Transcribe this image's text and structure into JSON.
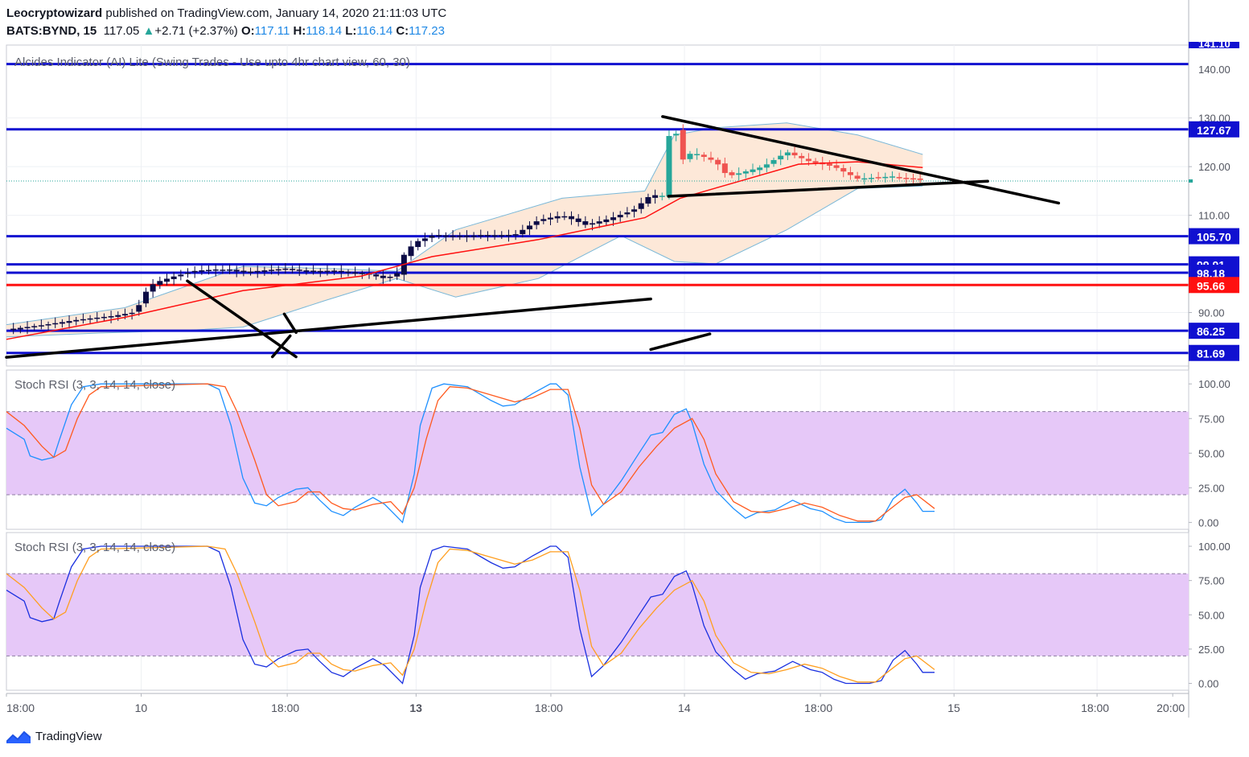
{
  "header": {
    "author": "Leocryptowizard",
    "published_text": "published on TradingView.com, January 14, 2020 21:11:03 UTC",
    "symbol": "BATS:BYND, 15",
    "last": "117.05",
    "change_arrow": "▲",
    "change": "+2.71 (+2.37%)",
    "o_label": "O:",
    "o_value": "117.11",
    "h_label": "H:",
    "h_value": "118.14",
    "l_label": "L:",
    "l_value": "116.14",
    "c_label": "C:",
    "c_value": "117.23"
  },
  "footer": {
    "brand": "TradingView"
  },
  "colors": {
    "up": "#26a69a",
    "down": "#ef5350",
    "blue_line": "#1010d0",
    "red_line": "#ff1010",
    "band_fill": "#fde8d8",
    "band_line": "#7ab8d8",
    "rsi_fill": "#e6c8f8",
    "k_line": "#1e90ff",
    "d_line_1": "#ff5a1f",
    "d_line_2": "#ff9e1f",
    "navy": "#0b0b45"
  },
  "chart_data": [
    {
      "type": "candlestick",
      "title": "Alcides Indicator (AI) Lite (Swing Trades - Use upto 4hr chart view, 60, 30)",
      "y_ticks": [
        "90.00",
        "100.00",
        "110.00",
        "120.00",
        "130.00"
      ],
      "top_partial_tick": "140.00",
      "ylim": [
        79,
        145
      ],
      "x_ticks": [
        "18:00",
        "10",
        "18:00",
        "13",
        "18:00",
        "14",
        "18:00",
        "15",
        "18:00",
        "20:00"
      ],
      "horizontal_levels": [
        {
          "value": 141.1,
          "label": "141.10",
          "color": "#1010d0"
        },
        {
          "value": 127.67,
          "label": "127.67",
          "color": "#1010d0"
        },
        {
          "value": 105.7,
          "label": "105.70",
          "color": "#1010d0"
        },
        {
          "value": 99.91,
          "label": "99.91",
          "color": "#1010d0"
        },
        {
          "value": 98.18,
          "label": "98.18",
          "color": "#1010d0"
        },
        {
          "value": 95.66,
          "label": "95.66",
          "color": "#ff1010"
        },
        {
          "value": 86.25,
          "label": "86.25",
          "color": "#1010d0"
        },
        {
          "value": 81.69,
          "label": "81.69",
          "color": "#1010d0"
        }
      ],
      "last_price": 117.05,
      "close_path": [
        [
          0,
          86.5
        ],
        [
          0.03,
          87.4
        ],
        [
          0.06,
          88.5
        ],
        [
          0.09,
          89.3
        ],
        [
          0.11,
          90.1
        ],
        [
          0.115,
          93.5
        ],
        [
          0.125,
          96.1
        ],
        [
          0.14,
          97.3
        ],
        [
          0.16,
          98.6
        ],
        [
          0.18,
          98.9
        ],
        [
          0.2,
          98.3
        ],
        [
          0.23,
          98.9
        ],
        [
          0.26,
          98.6
        ],
        [
          0.3,
          98.2
        ],
        [
          0.32,
          97.0
        ],
        [
          0.33,
          97.8
        ],
        [
          0.335,
          101.5
        ],
        [
          0.345,
          104.4
        ],
        [
          0.36,
          105.8
        ],
        [
          0.4,
          105.8
        ],
        [
          0.43,
          106.0
        ],
        [
          0.45,
          109.0
        ],
        [
          0.47,
          110.0
        ],
        [
          0.49,
          108.0
        ],
        [
          0.51,
          109.3
        ],
        [
          0.53,
          111.0
        ],
        [
          0.545,
          114.2
        ],
        [
          0.555,
          114.0
        ],
        [
          0.56,
          126.0
        ],
        [
          0.565,
          129.0
        ],
        [
          0.57,
          121.0
        ],
        [
          0.58,
          123.0
        ],
        [
          0.6,
          121.0
        ],
        [
          0.61,
          118.0
        ],
        [
          0.64,
          120.0
        ],
        [
          0.66,
          123.0
        ],
        [
          0.68,
          121.0
        ],
        [
          0.7,
          120.0
        ],
        [
          0.72,
          117.5
        ],
        [
          0.75,
          118.0
        ],
        [
          0.775,
          117.2
        ]
      ],
      "ema_path": [
        [
          0,
          84.5
        ],
        [
          0.1,
          89.0
        ],
        [
          0.2,
          94.5
        ],
        [
          0.3,
          97.5
        ],
        [
          0.36,
          101.5
        ],
        [
          0.45,
          105.0
        ],
        [
          0.54,
          109.5
        ],
        [
          0.57,
          113.5
        ],
        [
          0.62,
          117.0
        ],
        [
          0.67,
          120.5
        ],
        [
          0.72,
          121.0
        ],
        [
          0.775,
          119.8
        ]
      ],
      "band_upper": [
        [
          0,
          87.5
        ],
        [
          0.1,
          91.0
        ],
        [
          0.2,
          99.5
        ],
        [
          0.28,
          99.0
        ],
        [
          0.33,
          98.5
        ],
        [
          0.38,
          107.0
        ],
        [
          0.47,
          113.5
        ],
        [
          0.54,
          115.0
        ],
        [
          0.565,
          126.5
        ],
        [
          0.6,
          128.0
        ],
        [
          0.66,
          129.0
        ],
        [
          0.72,
          126.5
        ],
        [
          0.775,
          122.5
        ]
      ],
      "band_lower": [
        [
          0,
          85.0
        ],
        [
          0.08,
          85.8
        ],
        [
          0.15,
          86.3
        ],
        [
          0.2,
          87.0
        ],
        [
          0.27,
          92.5
        ],
        [
          0.33,
          97.0
        ],
        [
          0.38,
          93.2
        ],
        [
          0.45,
          97.0
        ],
        [
          0.52,
          105.8
        ],
        [
          0.565,
          100.5
        ],
        [
          0.6,
          100.0
        ],
        [
          0.66,
          107.0
        ],
        [
          0.72,
          115.5
        ],
        [
          0.775,
          116.0
        ]
      ],
      "trendlines": [
        {
          "from": [
            0,
            80.8
          ],
          "to": [
            0.545,
            92.8
          ]
        },
        {
          "from": [
            0.153,
            96.5
          ],
          "to": [
            0.245,
            80.9
          ]
        },
        {
          "from": [
            0.225,
            80.9
          ],
          "to": [
            0.24,
            85.2
          ]
        },
        {
          "from": [
            0.235,
            89.7
          ],
          "to": [
            0.245,
            85.9
          ]
        },
        {
          "from": [
            0.545,
            82.4
          ],
          "to": [
            0.595,
            85.6
          ]
        },
        {
          "from": [
            0.555,
            130.3
          ],
          "to": [
            0.89,
            112.5
          ]
        },
        {
          "from": [
            0.56,
            113.9
          ],
          "to": [
            0.83,
            117.0
          ]
        }
      ]
    },
    {
      "type": "line",
      "title": "Stoch RSI (3, 3, 14, 14, close)",
      "y_ticks": [
        "0.00",
        "25.00",
        "50.00",
        "75.00",
        "100.00"
      ],
      "ylim": [
        -5,
        110
      ],
      "bands": [
        20,
        80
      ],
      "series": [
        {
          "role": "k",
          "color": "#1e90ff",
          "points": [
            [
              0,
              68
            ],
            [
              0.015,
              60
            ],
            [
              0.02,
              48
            ],
            [
              0.03,
              45
            ],
            [
              0.04,
              47
            ],
            [
              0.045,
              60
            ],
            [
              0.055,
              85
            ],
            [
              0.065,
              98
            ],
            [
              0.08,
              100
            ],
            [
              0.17,
              100
            ],
            [
              0.18,
              96
            ],
            [
              0.19,
              70
            ],
            [
              0.2,
              32
            ],
            [
              0.21,
              14
            ],
            [
              0.22,
              12
            ],
            [
              0.23,
              18
            ],
            [
              0.245,
              24
            ],
            [
              0.255,
              25
            ],
            [
              0.265,
              16
            ],
            [
              0.275,
              8
            ],
            [
              0.285,
              5
            ],
            [
              0.295,
              11
            ],
            [
              0.31,
              18
            ],
            [
              0.32,
              13
            ],
            [
              0.335,
              0
            ],
            [
              0.345,
              35
            ],
            [
              0.35,
              70
            ],
            [
              0.36,
              97
            ],
            [
              0.37,
              100
            ],
            [
              0.39,
              98
            ],
            [
              0.41,
              88
            ],
            [
              0.42,
              84
            ],
            [
              0.43,
              85
            ],
            [
              0.445,
              93
            ],
            [
              0.46,
              100
            ],
            [
              0.465,
              100
            ],
            [
              0.475,
              92
            ],
            [
              0.485,
              40
            ],
            [
              0.495,
              5
            ],
            [
              0.505,
              13
            ],
            [
              0.52,
              30
            ],
            [
              0.535,
              50
            ],
            [
              0.545,
              63
            ],
            [
              0.555,
              65
            ],
            [
              0.565,
              78
            ],
            [
              0.575,
              82
            ],
            [
              0.58,
              72
            ],
            [
              0.59,
              42
            ],
            [
              0.6,
              23
            ],
            [
              0.615,
              10
            ],
            [
              0.625,
              3
            ],
            [
              0.635,
              7
            ],
            [
              0.65,
              9
            ],
            [
              0.665,
              16
            ],
            [
              0.68,
              10
            ],
            [
              0.69,
              8
            ],
            [
              0.7,
              3
            ],
            [
              0.71,
              0
            ],
            [
              0.73,
              0
            ],
            [
              0.74,
              2
            ],
            [
              0.75,
              17
            ],
            [
              0.76,
              24
            ],
            [
              0.77,
              14
            ],
            [
              0.775,
              8
            ],
            [
              0.785,
              8
            ]
          ]
        },
        {
          "role": "d",
          "color": "#ff5a1f",
          "points": [
            [
              0,
              80
            ],
            [
              0.015,
              70
            ],
            [
              0.03,
              55
            ],
            [
              0.04,
              47
            ],
            [
              0.05,
              52
            ],
            [
              0.06,
              75
            ],
            [
              0.07,
              92
            ],
            [
              0.08,
              98
            ],
            [
              0.17,
              100
            ],
            [
              0.185,
              98
            ],
            [
              0.195,
              80
            ],
            [
              0.21,
              45
            ],
            [
              0.22,
              20
            ],
            [
              0.23,
              12
            ],
            [
              0.245,
              15
            ],
            [
              0.255,
              22
            ],
            [
              0.265,
              22
            ],
            [
              0.275,
              14
            ],
            [
              0.285,
              10
            ],
            [
              0.295,
              9
            ],
            [
              0.31,
              13
            ],
            [
              0.325,
              15
            ],
            [
              0.335,
              6
            ],
            [
              0.345,
              25
            ],
            [
              0.355,
              60
            ],
            [
              0.365,
              88
            ],
            [
              0.375,
              98
            ],
            [
              0.39,
              97
            ],
            [
              0.41,
              92
            ],
            [
              0.43,
              87
            ],
            [
              0.445,
              90
            ],
            [
              0.46,
              96
            ],
            [
              0.475,
              96
            ],
            [
              0.485,
              68
            ],
            [
              0.495,
              27
            ],
            [
              0.505,
              13
            ],
            [
              0.52,
              22
            ],
            [
              0.535,
              40
            ],
            [
              0.55,
              55
            ],
            [
              0.565,
              68
            ],
            [
              0.58,
              75
            ],
            [
              0.59,
              60
            ],
            [
              0.6,
              35
            ],
            [
              0.615,
              15
            ],
            [
              0.63,
              8
            ],
            [
              0.645,
              7
            ],
            [
              0.66,
              10
            ],
            [
              0.675,
              14
            ],
            [
              0.69,
              11
            ],
            [
              0.705,
              5
            ],
            [
              0.72,
              1
            ],
            [
              0.735,
              1
            ],
            [
              0.745,
              8
            ],
            [
              0.76,
              18
            ],
            [
              0.77,
              20
            ],
            [
              0.785,
              10
            ]
          ]
        }
      ]
    },
    {
      "type": "line",
      "title": "Stoch RSI (3, 3, 14, 14, close)",
      "y_ticks": [
        "0.00",
        "25.00",
        "50.00",
        "75.00",
        "100.00"
      ],
      "ylim": [
        -5,
        110
      ],
      "bands": [
        20,
        80
      ],
      "series": [
        {
          "role": "k",
          "color": "#1a30e0"
        },
        {
          "role": "d",
          "color": "#ff9e1f"
        }
      ]
    }
  ]
}
